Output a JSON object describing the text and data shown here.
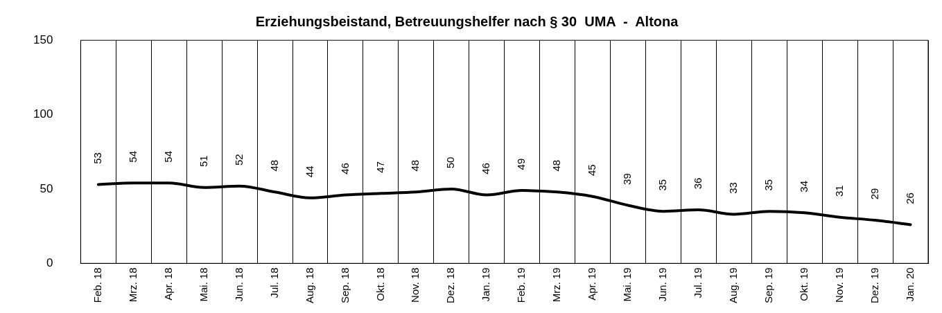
{
  "chart_data": {
    "type": "line",
    "title": "Erziehungsbeistand, Betreuungshelfer nach § 30  UMA  -  Altona",
    "categories": [
      "Feb. 18",
      "Mrz. 18",
      "Apr. 18",
      "Mai. 18",
      "Jun. 18",
      "Jul. 18",
      "Aug. 18",
      "Sep. 18",
      "Okt. 18",
      "Nov. 18",
      "Dez. 18",
      "Jan. 19",
      "Feb. 19",
      "Mrz. 19",
      "Apr. 19",
      "Mai. 19",
      "Jun. 19",
      "Jul. 19",
      "Aug. 19",
      "Sep. 19",
      "Okt. 19",
      "Nov. 19",
      "Dez. 19",
      "Jan. 20"
    ],
    "series": [
      {
        "color": "#000000",
        "values": [
          53,
          54,
          54,
          51,
          52,
          48,
          44,
          46,
          47,
          48,
          50,
          46,
          49,
          48,
          45,
          39,
          35,
          36,
          33,
          35,
          34,
          31,
          29,
          26
        ]
      }
    ],
    "ylim": [
      0,
      150
    ],
    "yticks": [
      0,
      50,
      100,
      150
    ],
    "grid": "x",
    "legend": false,
    "marker": "none",
    "line_style": "solid",
    "data_labels": true
  }
}
